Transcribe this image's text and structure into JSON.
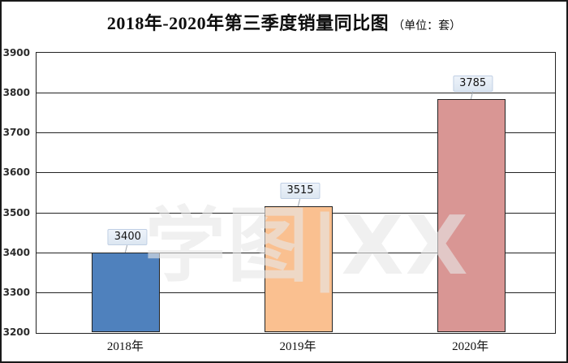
{
  "title": {
    "main": "2018年-2020年第三季度销量同比图",
    "unit": "（单位：套）"
  },
  "watermark": "学图|XX",
  "chart_data": {
    "type": "bar",
    "title": "2018年-2020年第三季度销量同比图",
    "unit_note": "单位：套",
    "categories": [
      "2018年",
      "2019年",
      "2020年"
    ],
    "values": [
      3400,
      3515,
      3785
    ],
    "data_labels": [
      "3400",
      "3515",
      "3785"
    ],
    "bar_colors": [
      "#4f81bd",
      "#fac090",
      "#d99694"
    ],
    "bar_border_color": "#232323",
    "ylim": [
      3200,
      3900
    ],
    "yticks": [
      3200,
      3300,
      3400,
      3500,
      3600,
      3700,
      3800,
      3900
    ],
    "grid": true,
    "gridline_color": "#232323",
    "label_box_fill": "#dce6f1",
    "label_box_border": "#c0cfe4",
    "legend": "none",
    "xlabel": "",
    "ylabel": ""
  }
}
